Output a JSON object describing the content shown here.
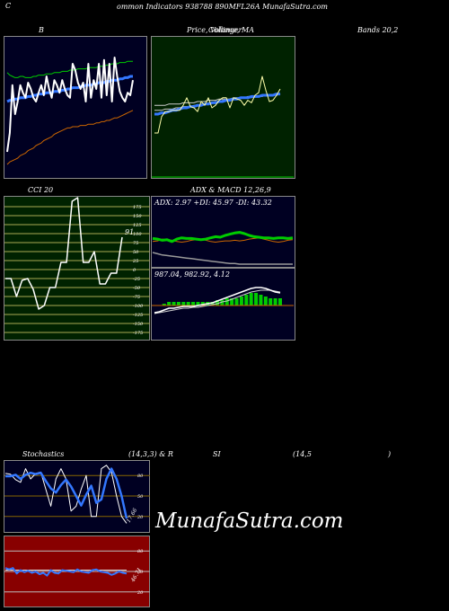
{
  "header": {
    "c": "C",
    "title": "ommon  Indicators 938788  890MFL26A MunafaSutra.com"
  },
  "labels": {
    "bollinger_left": "B",
    "bollinger_mid": "Price,  Volume,  MA",
    "bollinger_overlay": "Collinger",
    "bollinger_right": "Bands 20,2",
    "cci_title": "CCI 20",
    "adx_macd_title": "ADX  & MACD 12,26,9",
    "adx_values": "ADX: 2.97  +DI: 45.97  -DI: 43.32",
    "macd_values": "987.04,  982.92,  4.12",
    "stoch_left": "Stochastics",
    "stoch_mid": "(14,3,3) & R",
    "stoch_si": "SI",
    "stoch_rsi_params": "(14,5",
    "stoch_paren": ")",
    "cci_value": "91",
    "stoch_value": "17.66",
    "rsi_value": "46.71",
    "watermark": "MunafaSutra.com"
  },
  "colors": {
    "bollinger_bg": "#000022",
    "price_bg": "#002200",
    "cci_bg": "#002200",
    "adx_bg": "#000022",
    "stoch_bg": "#000022",
    "rsi_bg": "#880000",
    "white": "#ffffff",
    "blue": "#3377ff",
    "green": "#00cc00",
    "orange": "#cc6600",
    "gray": "#999999"
  },
  "chart_data": [
    {
      "id": "bollinger",
      "type": "line",
      "ylim": [
        0,
        100
      ],
      "series": [
        {
          "values": [
            15,
            30,
            68,
            45,
            55,
            68,
            62,
            58,
            70,
            65,
            58,
            55,
            62,
            68,
            60,
            75,
            65,
            58,
            72,
            68,
            62,
            72,
            65,
            60,
            58,
            85,
            80,
            70,
            65,
            70,
            55,
            85,
            58,
            72,
            65,
            85,
            58,
            88,
            60,
            85,
            55,
            90,
            75,
            63,
            58,
            55,
            62,
            60,
            72
          ]
        },
        {
          "values": [
            78,
            76,
            75,
            74,
            74,
            75,
            75,
            74,
            74,
            74,
            75,
            75,
            76,
            76,
            76,
            77,
            77,
            77,
            78,
            78,
            78,
            79,
            79,
            79,
            80,
            80,
            80,
            81,
            81,
            81,
            81,
            82,
            82,
            82,
            82,
            83,
            83,
            83,
            84,
            84,
            85,
            85,
            85,
            86,
            86,
            86,
            87,
            87,
            87
          ]
        },
        {
          "values": [
            55,
            56,
            56,
            57,
            57,
            58,
            58,
            58,
            59,
            59,
            60,
            60,
            61,
            61,
            61,
            62,
            62,
            62,
            63,
            63,
            63,
            64,
            64,
            65,
            65,
            66,
            66,
            66,
            67,
            67,
            68,
            68,
            68,
            69,
            69,
            70,
            70,
            70,
            71,
            71,
            72,
            72,
            72,
            73,
            73,
            74,
            74,
            75,
            75
          ]
        },
        {
          "values": [
            5,
            7,
            8,
            9,
            10,
            12,
            13,
            14,
            16,
            17,
            18,
            20,
            21,
            22,
            24,
            25,
            26,
            27,
            29,
            30,
            31,
            32,
            33,
            34,
            34,
            35,
            35,
            35,
            36,
            36,
            36,
            37,
            37,
            37,
            38,
            38,
            39,
            39,
            40,
            40,
            41,
            42,
            42,
            43,
            44,
            45,
            46,
            47,
            48
          ]
        }
      ]
    },
    {
      "id": "price",
      "type": "line",
      "ylim": [
        0,
        100
      ],
      "series": [
        {
          "values": [
            30,
            30,
            43,
            47,
            47,
            48,
            48,
            48,
            52,
            58,
            51,
            50,
            47,
            55,
            52,
            58,
            50,
            52,
            56,
            58,
            58,
            50,
            58,
            57,
            56,
            52,
            56,
            54,
            60,
            62,
            75,
            64,
            55,
            56,
            60,
            65
          ]
        },
        {
          "values": [
            45,
            45,
            46,
            46,
            47,
            48,
            48,
            49,
            50,
            50,
            51,
            51,
            52,
            52,
            53,
            53,
            54,
            54,
            55,
            55,
            56,
            56,
            57,
            57,
            58,
            58,
            58,
            59,
            59,
            59,
            60,
            60,
            60,
            60,
            61,
            61
          ]
        },
        {
          "values": [
            48,
            48,
            48,
            49,
            49,
            49,
            50,
            50,
            51,
            51,
            51,
            52,
            52,
            53,
            53,
            54,
            54,
            55,
            55,
            56,
            56,
            57,
            57,
            57,
            58,
            58,
            58,
            58,
            59,
            59,
            59,
            60,
            60,
            60,
            60,
            61
          ]
        },
        {
          "values": [
            52,
            52,
            52,
            52,
            53,
            53,
            53,
            53,
            54,
            54,
            54,
            54,
            55,
            55,
            55,
            56,
            56,
            56,
            57,
            57,
            57,
            57,
            58,
            58,
            58,
            58,
            59,
            59,
            59,
            59,
            60,
            60,
            60,
            60,
            60,
            61
          ]
        }
      ]
    },
    {
      "id": "cci",
      "type": "line",
      "ylim": [
        -175,
        175
      ],
      "hlines": [
        175,
        150,
        125,
        100,
        75,
        50,
        25,
        0,
        -25,
        -50,
        -75,
        -100,
        -125,
        -150,
        -175
      ],
      "tick_labels": [
        "175",
        "150",
        "125",
        "100",
        "75",
        "50",
        "25",
        "0",
        "-25",
        "-50",
        "-75",
        "-100",
        "-125",
        "-150",
        "-175"
      ],
      "values": [
        -25,
        -25,
        -75,
        -30,
        -25,
        -55,
        -110,
        -100,
        -50,
        -50,
        20,
        20,
        190,
        200,
        20,
        20,
        50,
        -40,
        -40,
        -10,
        -10,
        90
      ]
    },
    {
      "id": "adx",
      "type": "line",
      "ylim": [
        0,
        100
      ],
      "series": [
        {
          "name": "+DI",
          "values": [
            45,
            44,
            42,
            43,
            40,
            44,
            46,
            45,
            45,
            44,
            43,
            44,
            46,
            48,
            47,
            50,
            52,
            54,
            55,
            53,
            50,
            48,
            47,
            46,
            46,
            45,
            46,
            46,
            45,
            46
          ]
        },
        {
          "name": "-DI",
          "values": [
            40,
            41,
            44,
            43,
            42,
            40,
            39,
            40,
            42,
            43,
            44,
            42,
            40,
            39,
            40,
            41,
            41,
            42,
            41,
            42,
            44,
            45,
            46,
            44,
            42,
            40,
            39,
            40,
            42,
            43
          ]
        },
        {
          "name": "ADX",
          "values": [
            22,
            20,
            18,
            17,
            16,
            15,
            14,
            13,
            12,
            11,
            10,
            9,
            8,
            7,
            6,
            5,
            4,
            4,
            3,
            3,
            3,
            3,
            3,
            3,
            3,
            3,
            3,
            3,
            3,
            3
          ]
        }
      ]
    },
    {
      "id": "macd",
      "type": "line",
      "ylim": [
        960,
        1010
      ],
      "series": [
        {
          "name": "MACD",
          "values": [
            965,
            966,
            968,
            970,
            970,
            971,
            972,
            972,
            972,
            973,
            974,
            975,
            976,
            978,
            980,
            982,
            984,
            986,
            988,
            990,
            992,
            993,
            993,
            992,
            990,
            988,
            987
          ]
        },
        {
          "name": "Signal",
          "values": [
            964,
            965,
            966,
            967,
            968,
            969,
            970,
            970,
            971,
            971,
            972,
            973,
            974,
            975,
            977,
            978,
            980,
            982,
            984,
            986,
            988,
            989,
            990,
            990,
            990,
            989,
            988
          ]
        }
      ],
      "histogram": [
        0,
        0,
        1,
        2,
        2,
        2,
        2,
        2,
        2,
        2,
        2,
        2,
        2,
        3,
        3,
        4,
        4,
        4,
        5,
        6,
        7,
        7,
        6,
        5,
        4,
        4,
        4
      ]
    },
    {
      "id": "stochastics",
      "type": "line",
      "ylim": [
        0,
        100
      ],
      "hlines": [
        80,
        50,
        20
      ],
      "tick_labels": [
        "80",
        "50",
        "20"
      ],
      "series": [
        {
          "values": [
            83,
            82,
            74,
            70,
            90,
            75,
            83,
            85,
            60,
            35,
            75,
            90,
            75,
            28,
            35,
            60,
            80,
            20,
            20,
            90,
            95,
            85,
            50,
            20,
            10
          ]
        },
        {
          "values": [
            79,
            79,
            81,
            75,
            81,
            84,
            82,
            84,
            72,
            61,
            55,
            66,
            74,
            64,
            50,
            36,
            52,
            65,
            40,
            45,
            75,
            90,
            75,
            50,
            17
          ]
        }
      ]
    },
    {
      "id": "rsi",
      "type": "line",
      "ylim": [
        0,
        100
      ],
      "hlines": [
        80,
        50,
        20
      ],
      "tick_labels": [
        "80",
        "50",
        "20"
      ],
      "series": [
        {
          "values": [
            55,
            53,
            55,
            47,
            52,
            49,
            51,
            48,
            50,
            46,
            48,
            44,
            52,
            48,
            47,
            52,
            51,
            50,
            49,
            53,
            50,
            49,
            48,
            52,
            53,
            50,
            49,
            48,
            45,
            47,
            50,
            48,
            47
          ]
        },
        {
          "values": [
            52,
            52,
            52,
            52,
            52,
            52,
            52,
            52,
            52,
            52,
            52,
            52,
            52,
            52,
            52,
            52,
            52,
            52,
            52,
            52,
            52,
            52,
            52,
            52,
            52,
            52,
            52,
            52,
            52,
            52,
            52,
            52,
            52
          ]
        }
      ]
    }
  ]
}
